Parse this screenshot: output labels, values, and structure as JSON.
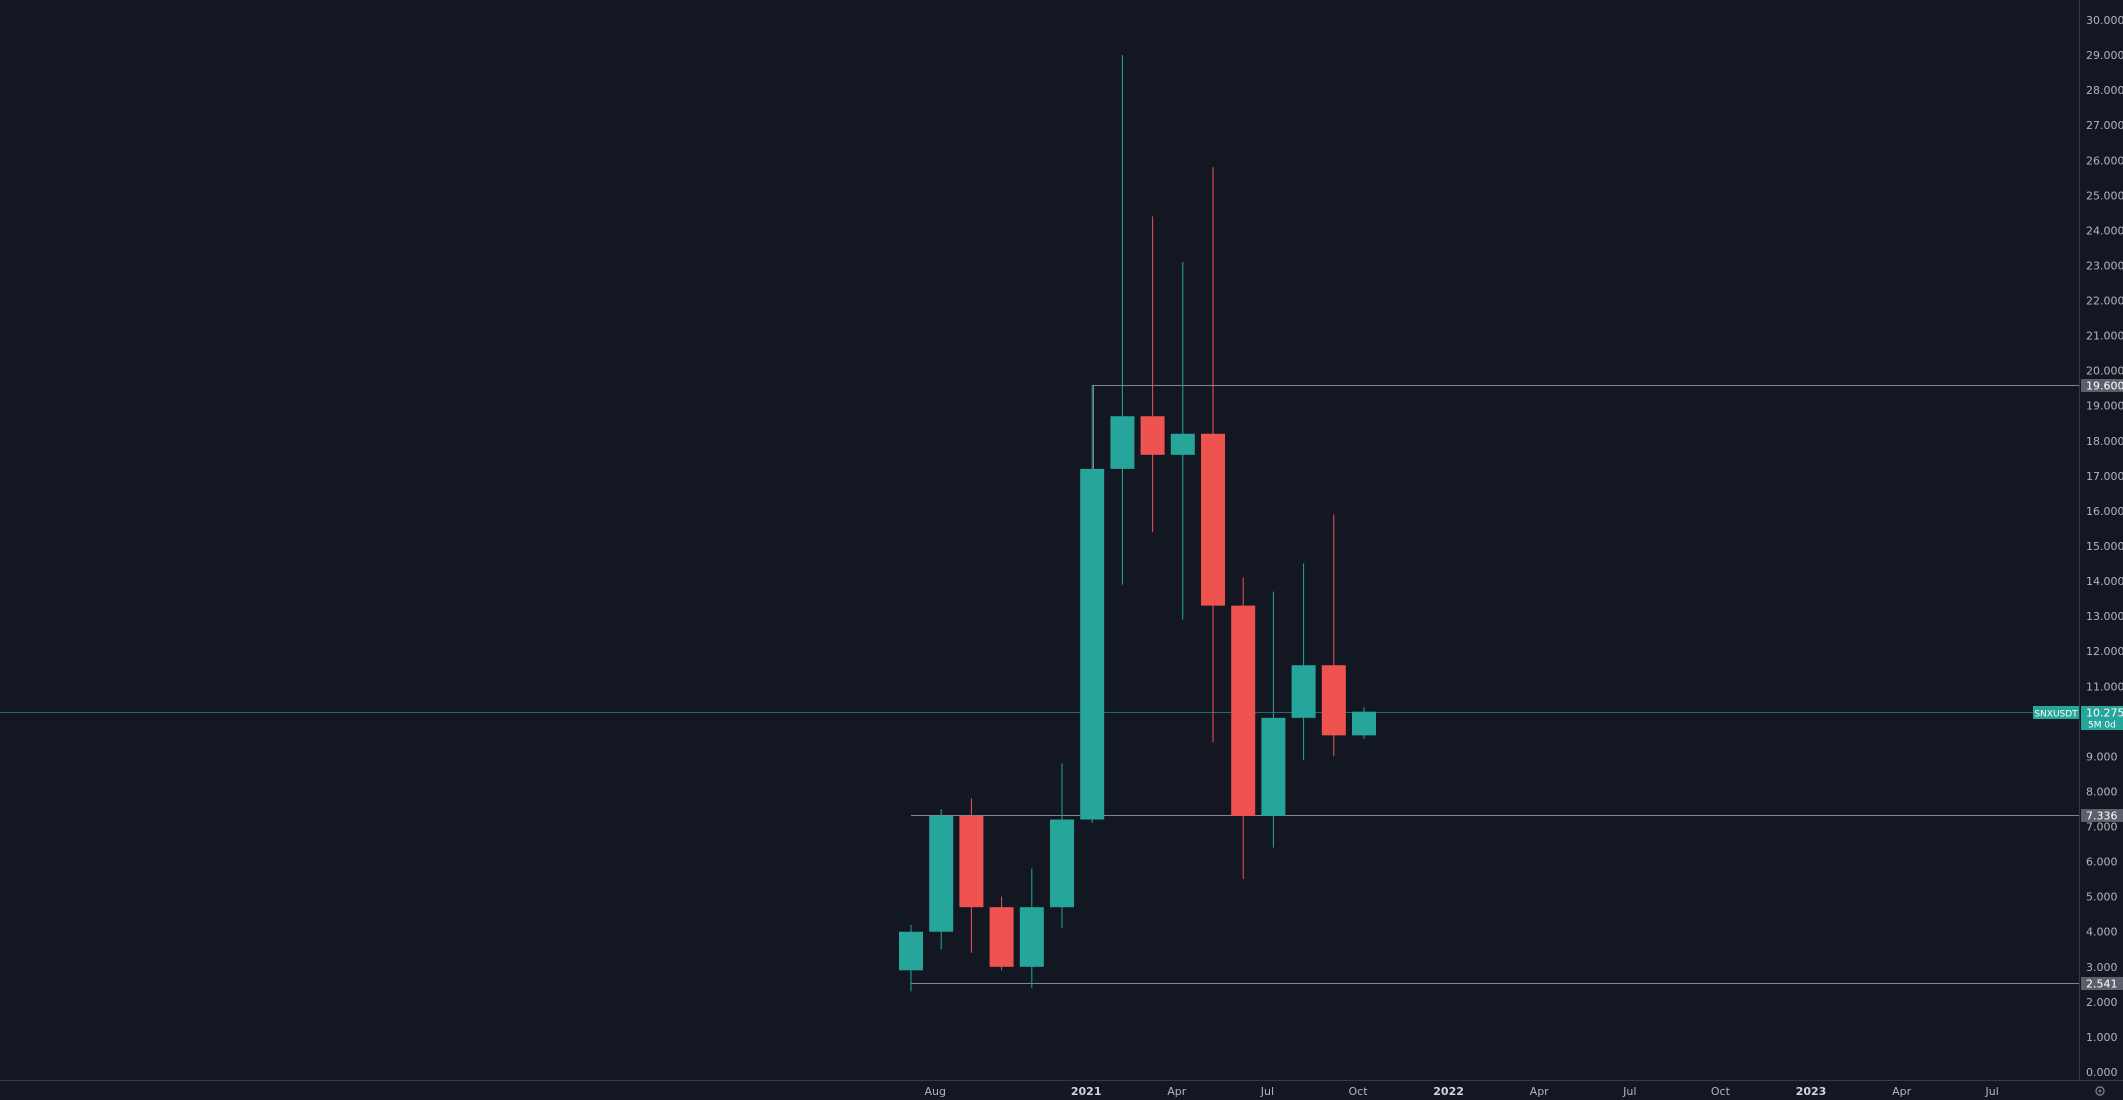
{
  "chart_data": {
    "type": "candlestick",
    "symbol": "SNXUSDT",
    "last_price": "10.275",
    "countdown": "5M 0d",
    "ylim": [
      0,
      30
    ],
    "y_ticks": [
      "0.000",
      "1.000",
      "2.000",
      "3.000",
      "4.000",
      "5.000",
      "6.000",
      "7.000",
      "8.000",
      "9.000",
      "10.000",
      "11.000",
      "12.000",
      "13.000",
      "14.000",
      "15.000",
      "16.000",
      "17.000",
      "18.000",
      "19.000",
      "20.000",
      "21.000",
      "22.000",
      "23.000",
      "24.000",
      "25.000",
      "26.000",
      "27.000",
      "28.000",
      "29.000",
      "30.000"
    ],
    "x_ticks": [
      {
        "label": "Aug",
        "month": 1,
        "strong": false
      },
      {
        "label": "2021",
        "month": 6,
        "strong": true
      },
      {
        "label": "Apr",
        "month": 9,
        "strong": false
      },
      {
        "label": "Jul",
        "month": 12,
        "strong": false
      },
      {
        "label": "Oct",
        "month": 15,
        "strong": false
      },
      {
        "label": "2022",
        "month": 18,
        "strong": true
      },
      {
        "label": "Apr",
        "month": 21,
        "strong": false
      },
      {
        "label": "Jul",
        "month": 24,
        "strong": false
      },
      {
        "label": "Oct",
        "month": 27,
        "strong": false
      },
      {
        "label": "2023",
        "month": 30,
        "strong": true
      },
      {
        "label": "Apr",
        "month": 33,
        "strong": false
      },
      {
        "label": "Jul",
        "month": 36,
        "strong": false
      }
    ],
    "candles": [
      {
        "month": "2020-07",
        "open": 2.9,
        "high": 4.2,
        "low": 2.3,
        "close": 4.0
      },
      {
        "month": "2020-08",
        "open": 4.0,
        "high": 7.5,
        "low": 3.5,
        "close": 7.3
      },
      {
        "month": "2020-09",
        "open": 7.3,
        "high": 7.8,
        "low": 3.4,
        "close": 4.7
      },
      {
        "month": "2020-10",
        "open": 4.7,
        "high": 5.0,
        "low": 2.9,
        "close": 3.0
      },
      {
        "month": "2020-11",
        "open": 3.0,
        "high": 5.8,
        "low": 2.4,
        "close": 4.7
      },
      {
        "month": "2020-12",
        "open": 4.7,
        "high": 8.8,
        "low": 4.1,
        "close": 7.2
      },
      {
        "month": "2021-01",
        "open": 7.2,
        "high": 19.6,
        "low": 7.1,
        "close": 17.2
      },
      {
        "month": "2021-02",
        "open": 17.2,
        "high": 29.0,
        "low": 13.9,
        "close": 18.7
      },
      {
        "month": "2021-03",
        "open": 18.7,
        "high": 24.4,
        "low": 15.4,
        "close": 17.6
      },
      {
        "month": "2021-04",
        "open": 17.6,
        "high": 23.1,
        "low": 12.9,
        "close": 18.2
      },
      {
        "month": "2021-05",
        "open": 18.2,
        "high": 25.8,
        "low": 9.4,
        "close": 13.3
      },
      {
        "month": "2021-06",
        "open": 13.3,
        "high": 14.1,
        "low": 5.5,
        "close": 7.3
      },
      {
        "month": "2021-07",
        "open": 7.3,
        "high": 13.7,
        "low": 6.4,
        "close": 10.1
      },
      {
        "month": "2021-08",
        "open": 10.1,
        "high": 14.5,
        "low": 8.9,
        "close": 11.6
      },
      {
        "month": "2021-09",
        "open": 11.6,
        "high": 15.9,
        "low": 9.0,
        "close": 9.6
      },
      {
        "month": "2021-10",
        "open": 9.6,
        "high": 10.4,
        "low": 9.5,
        "close": 10.275
      }
    ],
    "horizontal_levels": [
      {
        "value": 19.6,
        "label": "19.600"
      },
      {
        "value": 7.336,
        "label": "7.336"
      },
      {
        "value": 2.541,
        "label": "2.541"
      }
    ],
    "colors": {
      "background": "#131722",
      "up": "#26a69a",
      "down": "#ef5350",
      "level_line": "#b2b5be",
      "level_badge": "#5d606b",
      "price_line": "#26a69a",
      "text": "#b2b5be"
    }
  }
}
